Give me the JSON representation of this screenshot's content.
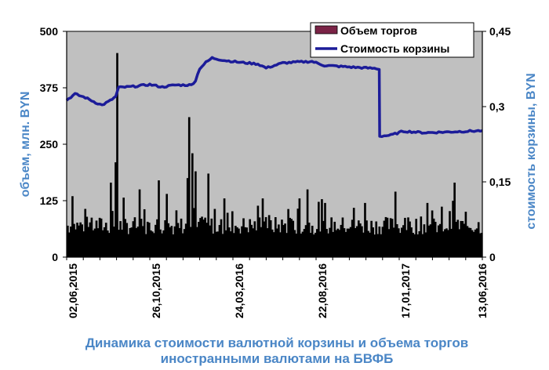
{
  "chart_data": {
    "type": "bar",
    "title": "Динамика стоимости валютной корзины и объема торгов иностранными валютами на БВФБ",
    "title_lines": [
      "Динамика стоимости валютной корзины и объема торгов",
      "иностранными валютами на БВФБ"
    ],
    "ylabel_left": "объем, млн. BYN",
    "ylabel_right": "стоимость корзины, BYN",
    "ylim_left": [
      0,
      500
    ],
    "ylim_right": [
      0,
      0.45
    ],
    "yticks_left": [
      "500",
      "375",
      "250",
      "125",
      "0"
    ],
    "yticks_right": [
      "0,45",
      "0,3",
      "0,15",
      "0"
    ],
    "x_tick_labels": [
      "02,06,2015",
      "26,10,2015",
      "24,03,2016",
      "22,08,2016",
      "17,01,2017",
      "13,06,2016"
    ],
    "grid": false,
    "legend_position": "top-right",
    "series": [
      {
        "name": "Объем торгов",
        "type": "bar",
        "axis": "left",
        "color": "#7a2346",
        "approx_baseline_range": [
          50,
          90
        ],
        "spikes": [
          {
            "x_frac": 0.012,
            "value": 135
          },
          {
            "x_frac": 0.105,
            "value": 165
          },
          {
            "x_frac": 0.115,
            "value": 210
          },
          {
            "x_frac": 0.118,
            "value": 452
          },
          {
            "x_frac": 0.175,
            "value": 150
          },
          {
            "x_frac": 0.22,
            "value": 170
          },
          {
            "x_frac": 0.24,
            "value": 140
          },
          {
            "x_frac": 0.29,
            "value": 175
          },
          {
            "x_frac": 0.295,
            "value": 310
          },
          {
            "x_frac": 0.3,
            "value": 230
          },
          {
            "x_frac": 0.31,
            "value": 190
          },
          {
            "x_frac": 0.34,
            "value": 185
          },
          {
            "x_frac": 0.38,
            "value": 130
          },
          {
            "x_frac": 0.47,
            "value": 130
          },
          {
            "x_frac": 0.56,
            "value": 130
          },
          {
            "x_frac": 0.58,
            "value": 150
          },
          {
            "x_frac": 0.62,
            "value": 120
          },
          {
            "x_frac": 0.72,
            "value": 120
          },
          {
            "x_frac": 0.79,
            "value": 145
          },
          {
            "x_frac": 0.87,
            "value": 120
          },
          {
            "x_frac": 0.935,
            "value": 165
          }
        ]
      },
      {
        "name": "Стоимость корзины",
        "type": "line",
        "axis": "right",
        "color": "#1c1c99",
        "points": [
          {
            "x_frac": 0.0,
            "value": 0.313
          },
          {
            "x_frac": 0.02,
            "value": 0.325
          },
          {
            "x_frac": 0.045,
            "value": 0.318
          },
          {
            "x_frac": 0.07,
            "value": 0.308
          },
          {
            "x_frac": 0.085,
            "value": 0.303
          },
          {
            "x_frac": 0.105,
            "value": 0.312
          },
          {
            "x_frac": 0.118,
            "value": 0.32
          },
          {
            "x_frac": 0.125,
            "value": 0.338
          },
          {
            "x_frac": 0.16,
            "value": 0.34
          },
          {
            "x_frac": 0.2,
            "value": 0.344
          },
          {
            "x_frac": 0.23,
            "value": 0.339
          },
          {
            "x_frac": 0.26,
            "value": 0.343
          },
          {
            "x_frac": 0.3,
            "value": 0.343
          },
          {
            "x_frac": 0.31,
            "value": 0.352
          },
          {
            "x_frac": 0.32,
            "value": 0.376
          },
          {
            "x_frac": 0.335,
            "value": 0.388
          },
          {
            "x_frac": 0.35,
            "value": 0.397
          },
          {
            "x_frac": 0.38,
            "value": 0.392
          },
          {
            "x_frac": 0.42,
            "value": 0.388
          },
          {
            "x_frac": 0.46,
            "value": 0.385
          },
          {
            "x_frac": 0.48,
            "value": 0.377
          },
          {
            "x_frac": 0.52,
            "value": 0.387
          },
          {
            "x_frac": 0.56,
            "value": 0.389
          },
          {
            "x_frac": 0.59,
            "value": 0.39
          },
          {
            "x_frac": 0.62,
            "value": 0.382
          },
          {
            "x_frac": 0.66,
            "value": 0.38
          },
          {
            "x_frac": 0.7,
            "value": 0.378
          },
          {
            "x_frac": 0.745,
            "value": 0.376
          },
          {
            "x_frac": 0.752,
            "value": 0.374
          },
          {
            "x_frac": 0.753,
            "value": 0.241
          },
          {
            "x_frac": 0.78,
            "value": 0.243
          },
          {
            "x_frac": 0.81,
            "value": 0.251
          },
          {
            "x_frac": 0.86,
            "value": 0.248
          },
          {
            "x_frac": 0.9,
            "value": 0.249
          },
          {
            "x_frac": 1.0,
            "value": 0.252
          }
        ]
      }
    ]
  },
  "colors": {
    "plot_background": "#c0c0c0",
    "axis_title": "#4a86c6",
    "volume_bars": "#000000",
    "volume_legend_swatch": "#7a2346",
    "basket_line": "#1c1c99"
  }
}
